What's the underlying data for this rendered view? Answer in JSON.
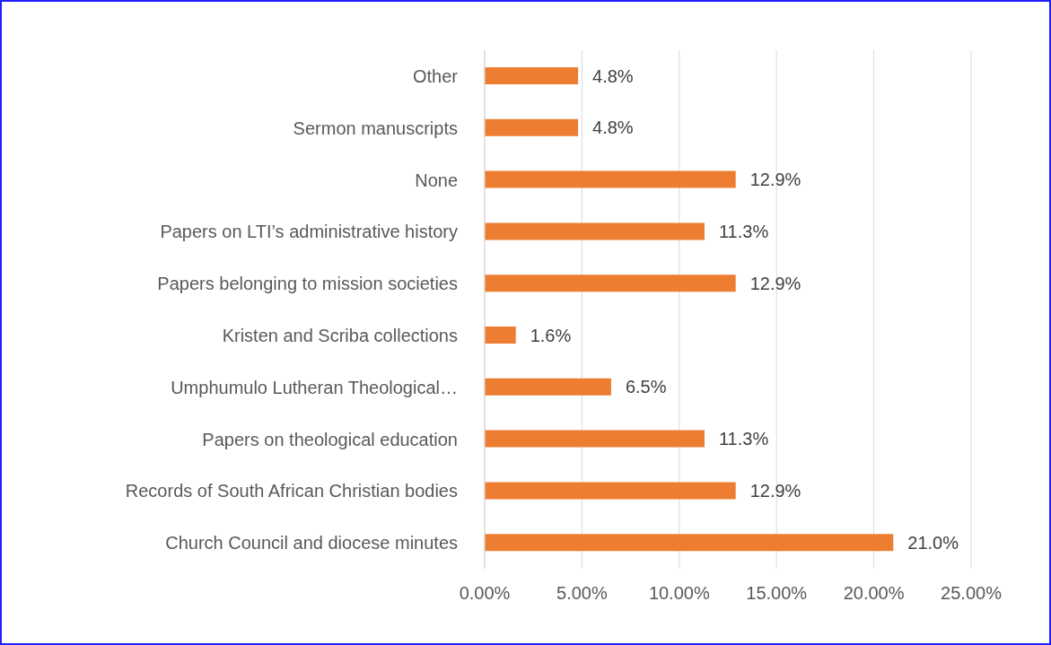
{
  "chart_data": {
    "type": "bar",
    "orientation": "horizontal",
    "categories": [
      "Other",
      "Sermon manuscripts",
      "None",
      "Papers on LTI’s administrative history",
      "Papers belonging to mission societies",
      "Kristen and Scriba collections",
      "Umphumulo Lutheran Theological…",
      "Papers on theological education",
      "Records of South African Christian bodies",
      "Church Council and diocese minutes"
    ],
    "values": [
      4.8,
      4.8,
      12.9,
      11.3,
      12.9,
      1.6,
      6.5,
      11.3,
      12.9,
      21.0
    ],
    "value_labels": [
      "4.8%",
      "4.8%",
      "12.9%",
      "11.3%",
      "12.9%",
      "1.6%",
      "6.5%",
      "11.3%",
      "12.9%",
      "21.0%"
    ],
    "color": "#ed7d31",
    "xlim": [
      0,
      25
    ],
    "xticks": [
      {
        "value": 0,
        "label": "0.00%"
      },
      {
        "value": 5,
        "label": "5.00%"
      },
      {
        "value": 10,
        "label": "10.00%"
      },
      {
        "value": 15,
        "label": "15.00%"
      },
      {
        "value": 20,
        "label": "20.00%"
      },
      {
        "value": 25,
        "label": "25.00%"
      }
    ],
    "grid": "x",
    "legend": false
  }
}
